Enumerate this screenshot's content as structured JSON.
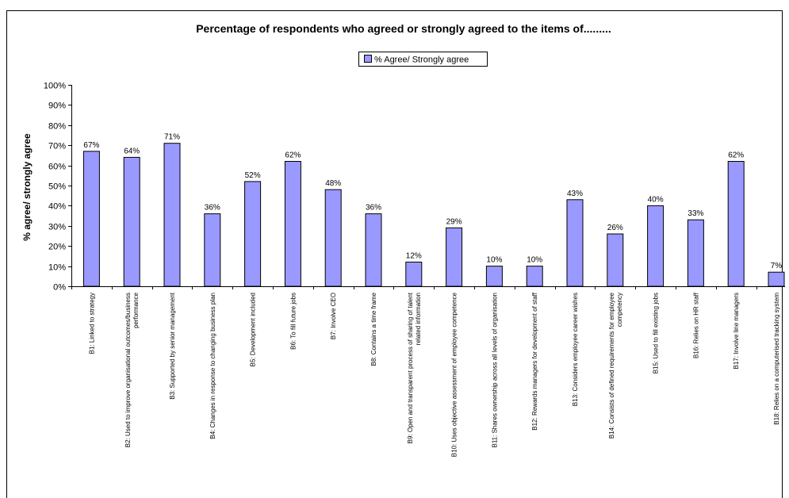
{
  "chart_data": {
    "type": "bar",
    "title": "Percentage of respondents who agreed or strongly agreed to the items of.........",
    "xlabel": "",
    "ylabel": "% agree/ strongly agree",
    "ylim": [
      0,
      100
    ],
    "y_ticks": [
      "0%",
      "10%",
      "20%",
      "30%",
      "40%",
      "50%",
      "60%",
      "70%",
      "80%",
      "90%",
      "100%"
    ],
    "grid": false,
    "legend_position": "top-center",
    "bar_color": "#9999ff",
    "categories": [
      "B1: Linked to strategy",
      "B2: Used to improve organisational outcomes/business performance",
      "B3: Supported by senior management",
      "B4: Changes in response to changing business plan",
      "B5: Development included",
      "B6: To fill future jobs",
      "B7: Involve CEO",
      "B8: Contains a time frame",
      "B9: Open and transparent process of sharing of talent related information",
      "B10: Uses objective assessment of employee competence",
      "B11: Shares ownership across all levels of organisation",
      "B12: Rewards managers for development of staff",
      "B13: Considers employee career wishes",
      "B14: Consists of defined requirements for employee competency",
      "B15: Used to fill existing jobs",
      "B16: Relies on HR staff",
      "B17: Involve line managers",
      "B18: Relies on a computerised tracking system"
    ],
    "series": [
      {
        "name": "% Agree/ Strongly agree",
        "values": [
          67,
          64,
          71,
          36,
          52,
          62,
          48,
          36,
          12,
          29,
          10,
          10,
          43,
          26,
          40,
          33,
          62,
          7
        ],
        "labels": [
          "67%",
          "64%",
          "71%",
          "36%",
          "52%",
          "62%",
          "48%",
          "36%",
          "12%",
          "29%",
          "10%",
          "10%",
          "43%",
          "26%",
          "40%",
          "33%",
          "62%",
          "7%"
        ]
      }
    ]
  }
}
